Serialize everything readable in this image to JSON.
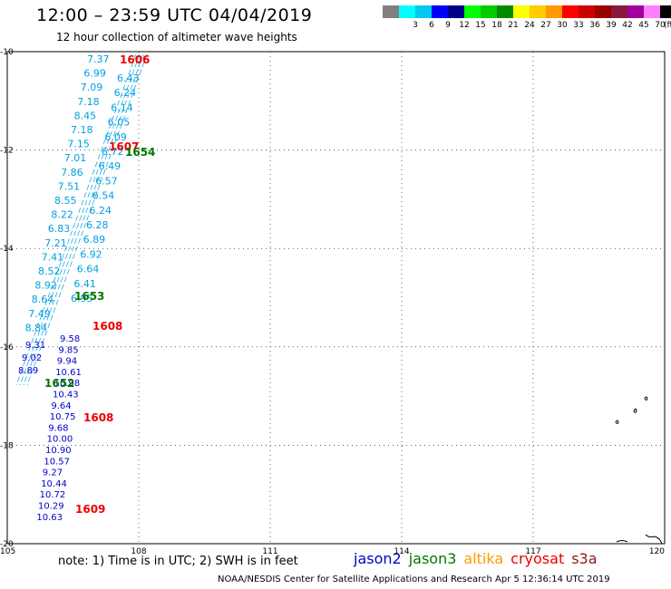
{
  "header": {
    "title": "12:00 – 23:59 UTC 04/04/2019",
    "subtitle": "12 hour collection of altimeter wave heights"
  },
  "scale": {
    "unit": "(ft)",
    "bins": [
      {
        "label": "",
        "color": "#808080"
      },
      {
        "label": "3",
        "color": "#00ffff"
      },
      {
        "label": "6",
        "color": "#00c8f0"
      },
      {
        "label": "9",
        "color": "#0000ff"
      },
      {
        "label": "12",
        "color": "#00008b"
      },
      {
        "label": "15",
        "color": "#00ff00"
      },
      {
        "label": "18",
        "color": "#00cc00"
      },
      {
        "label": "21",
        "color": "#008b00"
      },
      {
        "label": "24",
        "color": "#ffff00"
      },
      {
        "label": "27",
        "color": "#ffcc00"
      },
      {
        "label": "30",
        "color": "#ff9900"
      },
      {
        "label": "33",
        "color": "#ff0000"
      },
      {
        "label": "36",
        "color": "#cc0000"
      },
      {
        "label": "39",
        "color": "#990000"
      },
      {
        "label": "42",
        "color": "#8b1a3a"
      },
      {
        "label": "45",
        "color": "#a000a0"
      },
      {
        "label": "70",
        "color": "#ff80ff"
      },
      {
        "label": "",
        "color": "#000000"
      }
    ]
  },
  "map": {
    "lon_range": [
      105,
      120
    ],
    "lat_range": [
      -20,
      -10
    ],
    "lon_ticks": [
      "105",
      "108",
      "111",
      "114",
      "117",
      "120"
    ],
    "lat_ticks": [
      "-10",
      "-12",
      "-14",
      "-16",
      "-18",
      "-20"
    ]
  },
  "colors": {
    "cyan": "#00a0e0",
    "blue": "#0000cc",
    "green": "#007700",
    "red": "#ee0000"
  },
  "tracks": {
    "cyan_values": [
      "7.37",
      "6.99",
      "7.09",
      "7.18",
      "8.45",
      "7.18",
      "7.15",
      "7.01",
      "7.86",
      "7.51",
      "8.55",
      "8.22",
      "6.83",
      "7.21",
      "7.41",
      "8.52",
      "8.92",
      "8.64",
      "7.49",
      "8.84"
    ],
    "cyan_inner_values": [
      "6.43",
      "6.24",
      "6.14",
      "6.05",
      "6.09",
      "6.72",
      "6.49",
      "6.57",
      "6.54",
      "6.24",
      "6.28",
      "6.89",
      "6.92",
      "6.64",
      "6.41",
      "6.95"
    ],
    "blue_values": [
      "9.58",
      "9.85",
      "9.94",
      "10.61",
      "10.98",
      "10.43",
      "9.64",
      "10.75",
      "9.68",
      "10.00",
      "10.90",
      "10.57",
      "9.27",
      "10.44",
      "10.72",
      "10.29",
      "10.63"
    ],
    "blue_left_values": [
      "9.31",
      "9.02",
      "8.89"
    ]
  },
  "time_labels": {
    "red": [
      "1606",
      "1607",
      "1608",
      "1608",
      "1609"
    ],
    "green": [
      "1654",
      "1653",
      "1652"
    ]
  },
  "footer": {
    "note": "note:  1) Time is in UTC;  2) SWH is in feet",
    "legend": [
      {
        "name": "jason2",
        "color": "#0000cc"
      },
      {
        "name": "jason3",
        "color": "#007700"
      },
      {
        "name": "altika",
        "color": "#ff9900"
      },
      {
        "name": "cryosat",
        "color": "#ee0000"
      },
      {
        "name": "s3a",
        "color": "#8b1a1a"
      }
    ],
    "credit": "NOAA/NESDIS Center for Satellite Applications and Research    Apr  5 12:36:14 UTC 2019"
  }
}
